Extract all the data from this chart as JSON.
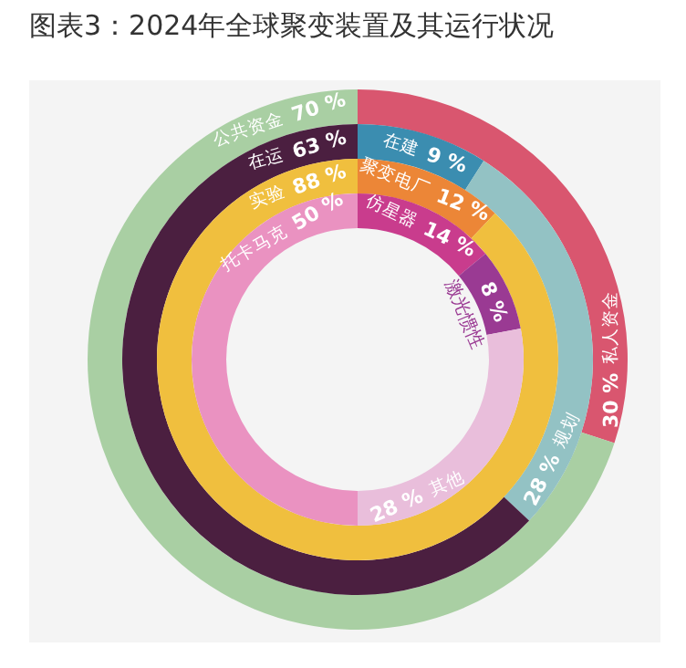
{
  "chart_data": [
    {
      "type": "donut",
      "title": "图表3：2024年全球聚变装置及其运行状况",
      "categories": [
        "私人资金",
        "公共资金"
      ],
      "values": [
        30,
        70
      ],
      "value_labels": [
        "30 %",
        "70 %"
      ],
      "colors": [
        "#d9566f",
        "#a9cfa3"
      ]
    },
    {
      "type": "donut",
      "categories": [
        "在建",
        "规划",
        "在运"
      ],
      "values": [
        9,
        28,
        63
      ],
      "value_labels": [
        "9 %",
        "28 %",
        "63 %"
      ],
      "colors": [
        "#3b8db0",
        "#93c2c4",
        "#4b1f40"
      ]
    },
    {
      "type": "donut",
      "categories": [
        "聚变电厂",
        "实验"
      ],
      "values": [
        12,
        88
      ],
      "value_labels": [
        "12 %",
        "88 %"
      ],
      "colors": [
        "#ec8637",
        "#f0bf3e"
      ]
    },
    {
      "type": "donut",
      "categories": [
        "仿星器",
        "激光惯性",
        "其他",
        "托卡马克"
      ],
      "values": [
        14,
        8,
        28,
        50
      ],
      "value_labels": [
        "14 %",
        "8 %",
        "28 %",
        "50 %"
      ],
      "colors": [
        "#c93c8d",
        "#9a3a93",
        "#e9bedb",
        "#ea92c1"
      ]
    }
  ]
}
